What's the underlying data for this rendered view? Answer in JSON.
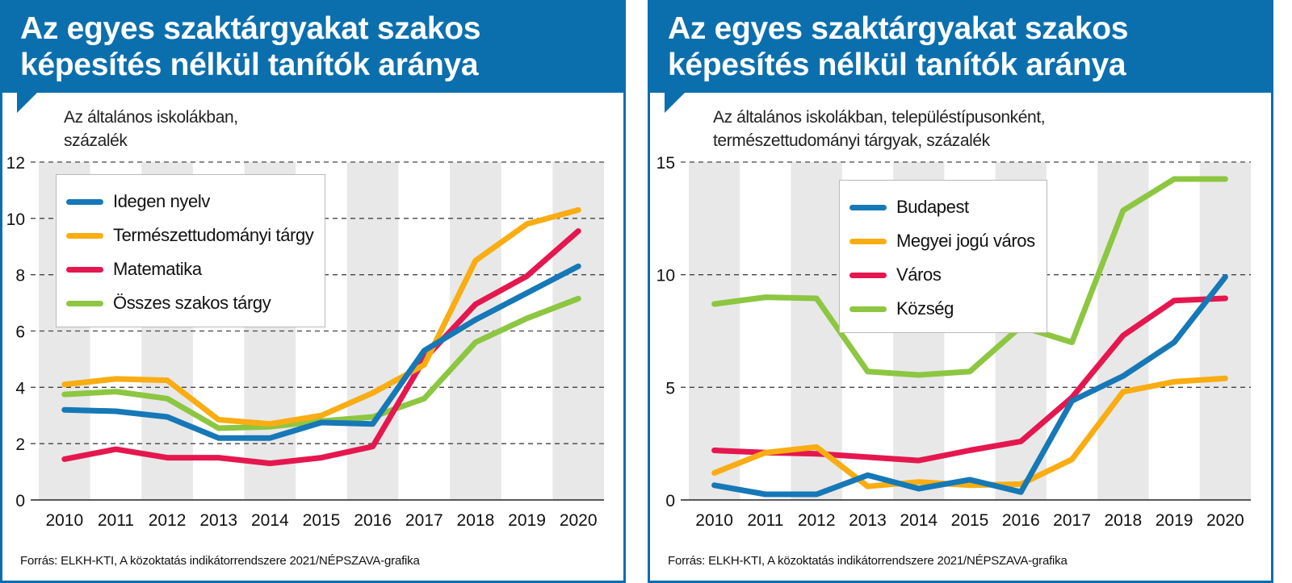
{
  "panels": [
    {
      "title_line1": "Az egyes szaktárgyakat szakos",
      "title_line2": "képesítés nélkül tanítók aránya",
      "subtitle_line1": "Az általános iskolákban,",
      "subtitle_line2": "százalék",
      "source": "Forrás: ELKH-KTI, A közoktatás indikátorrendszere 2021/NÉPSZAVA-grafika",
      "legend": [
        {
          "label": "Idegen nyelv",
          "color": "#1678b7"
        },
        {
          "label": "Természettudományi tárgy",
          "color": "#f9ad12"
        },
        {
          "label": "Matematika",
          "color": "#e5174f"
        },
        {
          "label": "Összes szakos tárgy",
          "color": "#8dc641"
        }
      ]
    },
    {
      "title_line1": "Az egyes szaktárgyakat szakos",
      "title_line2": "képesítés nélkül tanítók aránya",
      "subtitle_line1": "Az általános iskolákban, településtípusonként,",
      "subtitle_line2": "természettudományi tárgyak, százalék",
      "source": "Forrás: ELKH-KTI, A közoktatás indikátorrendszere 2021/NÉPSZAVA-grafika",
      "legend": [
        {
          "label": "Budapest",
          "color": "#1678b7"
        },
        {
          "label": "Megyei jogú város",
          "color": "#f9ad12"
        },
        {
          "label": "Város",
          "color": "#e5174f"
        },
        {
          "label": "Község",
          "color": "#8dc641"
        }
      ]
    }
  ],
  "chart_data": [
    {
      "type": "line",
      "title": "Az egyes szaktárgyakat szakos képesítés nélkül tanítók aránya",
      "subtitle": "Az általános iskolákban, százalék",
      "x": [
        "2010",
        "2011",
        "2012",
        "2013",
        "2014",
        "2015",
        "2016",
        "2017",
        "2018",
        "2019",
        "2020"
      ],
      "ylim": [
        0,
        12
      ],
      "yticks": [
        0,
        2,
        4,
        6,
        8,
        10,
        12
      ],
      "grid": "dashed horizontal, alternating vertical year bands",
      "legend_position": "top-left",
      "series": [
        {
          "name": "Idegen nyelv",
          "color": "#1678b7",
          "values": [
            3.2,
            3.15,
            2.95,
            2.2,
            2.2,
            2.75,
            2.7,
            5.3,
            6.4,
            7.35,
            8.3
          ]
        },
        {
          "name": "Természettudományi tárgy",
          "color": "#f9ad12",
          "values": [
            4.1,
            4.3,
            4.25,
            2.85,
            2.7,
            3.0,
            3.8,
            4.8,
            8.5,
            9.8,
            10.3
          ]
        },
        {
          "name": "Matematika",
          "color": "#e5174f",
          "values": [
            1.45,
            1.8,
            1.5,
            1.5,
            1.3,
            1.5,
            1.9,
            5.0,
            6.95,
            7.95,
            9.55
          ]
        },
        {
          "name": "Összes szakos tárgy",
          "color": "#8dc641",
          "values": [
            3.75,
            3.85,
            3.6,
            2.55,
            2.6,
            2.8,
            2.95,
            3.6,
            5.6,
            6.45,
            7.15
          ]
        }
      ]
    },
    {
      "type": "line",
      "title": "Az egyes szaktárgyakat szakos képesítés nélkül tanítók aránya",
      "subtitle": "Az általános iskolákban, településtípusonként, természettudományi tárgyak, százalék",
      "x": [
        "2010",
        "2011",
        "2012",
        "2013",
        "2014",
        "2015",
        "2016",
        "2017",
        "2018",
        "2019",
        "2020"
      ],
      "ylim": [
        0,
        15
      ],
      "yticks": [
        0,
        5,
        10,
        15
      ],
      "grid": "dashed horizontal, alternating vertical year bands",
      "legend_position": "top-center",
      "series": [
        {
          "name": "Budapest",
          "color": "#1678b7",
          "values": [
            0.65,
            0.25,
            0.25,
            1.1,
            0.5,
            0.9,
            0.35,
            4.4,
            5.5,
            7.0,
            9.9
          ]
        },
        {
          "name": "Megyei jogú város",
          "color": "#f9ad12",
          "values": [
            1.2,
            2.1,
            2.35,
            0.6,
            0.8,
            0.65,
            0.7,
            1.8,
            4.8,
            5.25,
            5.4
          ]
        },
        {
          "name": "Város",
          "color": "#e5174f",
          "values": [
            2.2,
            2.1,
            2.05,
            1.9,
            1.75,
            2.2,
            2.6,
            4.55,
            7.3,
            8.85,
            8.95
          ]
        },
        {
          "name": "Község",
          "color": "#8dc641",
          "values": [
            8.7,
            9.0,
            8.95,
            5.7,
            5.55,
            5.7,
            7.7,
            7.0,
            12.85,
            14.25,
            14.25
          ]
        }
      ]
    }
  ]
}
